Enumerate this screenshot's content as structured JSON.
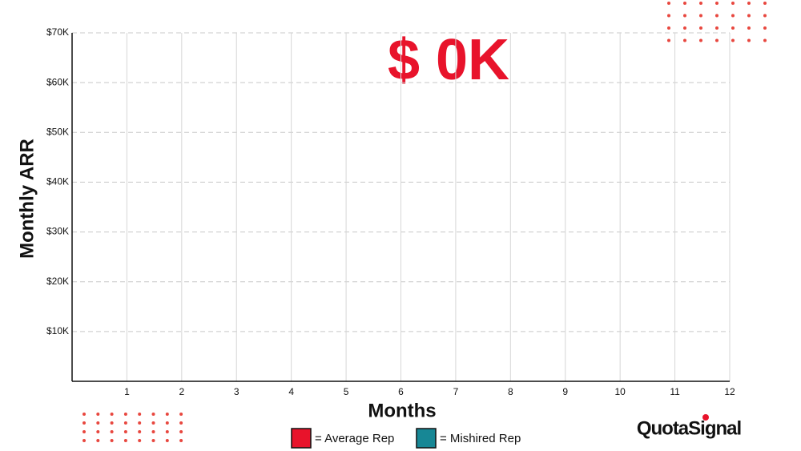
{
  "chart_data": {
    "type": "line",
    "annotation": "$ 0K",
    "x_label": "Months",
    "y_label": "Monthly ARR",
    "xlim": [
      0,
      12
    ],
    "xticks": [
      1,
      2,
      3,
      4,
      5,
      6,
      7,
      8,
      9,
      10,
      11,
      12
    ],
    "ylim": [
      0,
      70000
    ],
    "yticks": [
      {
        "value": 10000,
        "label": "$10K"
      },
      {
        "value": 20000,
        "label": "$20K"
      },
      {
        "value": 30000,
        "label": "$30K"
      },
      {
        "value": 40000,
        "label": "$40K"
      },
      {
        "value": 50000,
        "label": "$50K"
      },
      {
        "value": 60000,
        "label": "$60K"
      },
      {
        "value": 70000,
        "label": "$70K"
      }
    ],
    "grid": true,
    "series": [
      {
        "name": "= Average Rep",
        "color": "#e8132b",
        "values": []
      },
      {
        "name": "= Mishired Rep",
        "color": "#178795",
        "values": []
      }
    ],
    "brand": "QuotaSignal"
  }
}
